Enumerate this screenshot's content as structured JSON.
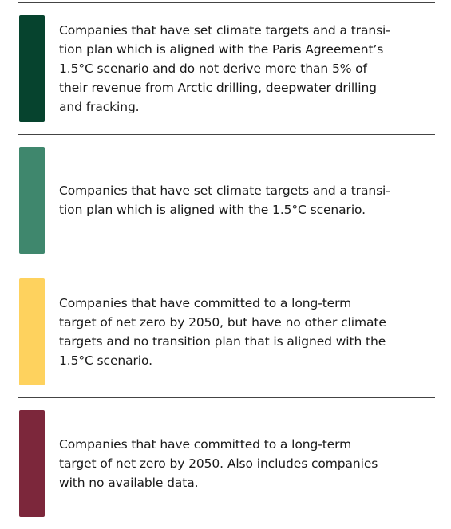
{
  "items": [
    {
      "color": "#06432e",
      "lines": [
        "Companies that have set climate targets and a transi-",
        "tion plan which is aligned with the Paris Agreement’s",
        "1.5°C scenario and do not derive more than 5% of",
        "their revenue from Arctic drilling, deepwater drilling",
        "and fracking."
      ]
    },
    {
      "color": "#3f876d",
      "lines": [
        "Companies that have set climate targets and a transi-",
        "tion plan which is aligned with the 1.5°C scenario."
      ]
    },
    {
      "color": "#fed25e",
      "lines": [
        "Companies that have committed to a long-term",
        "target of net zero by 2050, but have no other climate",
        "targets and no transition plan that is aligned with the",
        "1.5°C scenario."
      ]
    },
    {
      "color": "#7c273b",
      "lines": [
        "Companies that have committed to a long-term",
        "target of net zero by 2050. Also includes companies",
        "with no available data."
      ]
    }
  ]
}
